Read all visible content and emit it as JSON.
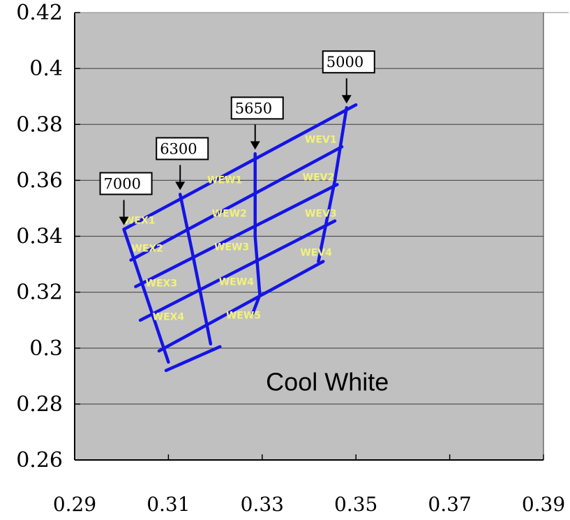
{
  "chart_data": {
    "type": "line",
    "title": "",
    "xlabel": "",
    "ylabel": "",
    "xlim": [
      0.29,
      0.39
    ],
    "ylim": [
      0.26,
      0.42
    ],
    "x_ticks": [
      "0.29",
      "0.31",
      "0.33",
      "0.35",
      "0.37",
      "0.39"
    ],
    "y_ticks": [
      "0.42",
      "0.4",
      "0.38",
      "0.36",
      "0.34",
      "0.32",
      "0.3",
      "0.28",
      "0.26"
    ],
    "grid": {
      "horizontal": true,
      "vertical": false
    },
    "annotation": "Cool White",
    "cct_boundaries": [
      {
        "label": "7000",
        "x": 0.3005,
        "y": 0.3425
      },
      {
        "label": "6300",
        "x": 0.3125,
        "y": 0.355
      },
      {
        "label": "5650",
        "x": 0.3285,
        "y": 0.3695
      },
      {
        "label": "5000",
        "x": 0.348,
        "y": 0.386
      }
    ],
    "grid_lines": [
      {
        "points": [
          [
            0.3005,
            0.3425
          ],
          [
            0.35,
            0.387
          ]
        ]
      },
      {
        "points": [
          [
            0.302,
            0.3315
          ],
          [
            0.347,
            0.372
          ]
        ]
      },
      {
        "points": [
          [
            0.303,
            0.322
          ],
          [
            0.346,
            0.3585
          ]
        ]
      },
      {
        "points": [
          [
            0.304,
            0.31
          ],
          [
            0.3455,
            0.3455
          ]
        ]
      },
      {
        "points": [
          [
            0.308,
            0.299
          ],
          [
            0.343,
            0.331
          ]
        ]
      },
      {
        "points": [
          [
            0.3095,
            0.292
          ],
          [
            0.321,
            0.3005
          ]
        ]
      },
      {
        "points": [
          [
            0.3005,
            0.3425
          ],
          [
            0.31,
            0.295
          ]
        ]
      },
      {
        "points": [
          [
            0.3125,
            0.355
          ],
          [
            0.315,
            0.335
          ],
          [
            0.318,
            0.31
          ],
          [
            0.319,
            0.3015
          ]
        ]
      },
      {
        "points": [
          [
            0.3285,
            0.3695
          ],
          [
            0.3285,
            0.34
          ],
          [
            0.3295,
            0.319
          ],
          [
            0.328,
            0.3125
          ]
        ]
      },
      {
        "points": [
          [
            0.348,
            0.386
          ],
          [
            0.3455,
            0.36
          ],
          [
            0.342,
            0.331
          ]
        ]
      }
    ],
    "bins": [
      {
        "label": "WEX1",
        "x": 0.3038,
        "y": 0.3445
      },
      {
        "label": "WEX2",
        "x": 0.3055,
        "y": 0.3345
      },
      {
        "label": "WEX3",
        "x": 0.3085,
        "y": 0.322
      },
      {
        "label": "WEX4",
        "x": 0.31,
        "y": 0.31
      },
      {
        "label": "WEW1",
        "x": 0.322,
        "y": 0.359
      },
      {
        "label": "WEW2",
        "x": 0.323,
        "y": 0.347
      },
      {
        "label": "WEW3",
        "x": 0.3235,
        "y": 0.335
      },
      {
        "label": "WEW4",
        "x": 0.3245,
        "y": 0.3225
      },
      {
        "label": "WEW5",
        "x": 0.326,
        "y": 0.3105
      },
      {
        "label": "WEV1",
        "x": 0.3425,
        "y": 0.3735
      },
      {
        "label": "WEV2",
        "x": 0.342,
        "y": 0.36
      },
      {
        "label": "WEV3",
        "x": 0.3425,
        "y": 0.347
      },
      {
        "label": "WEV4",
        "x": 0.3415,
        "y": 0.333
      }
    ],
    "colors": {
      "plot_background": "#c0c0c0",
      "grid": "#555555",
      "lines": "#1414e6",
      "bin_text": "#f2f27a",
      "box_fill": "#ffffff"
    }
  }
}
